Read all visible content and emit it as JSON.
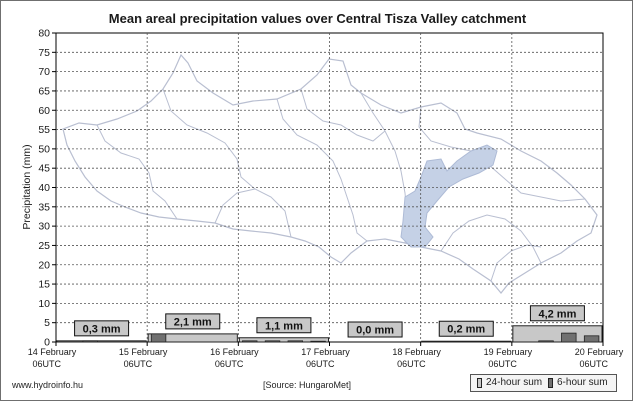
{
  "title": "Mean areal precipitation values over Central Tisza Valley catchment",
  "footer": {
    "website": "www.hydroinfo.hu",
    "source": "[Source: HungaroMet]"
  },
  "legend": {
    "items": [
      {
        "label": "24-hour sum",
        "color": "#c8c8c8"
      },
      {
        "label": "6-hour sum",
        "color": "#707070"
      }
    ]
  },
  "colors": {
    "daily_bar": "#c8c8c8",
    "six_hour_bar": "#707070",
    "label_box": "#c8c8c8",
    "map_outline": "#b9bfd1",
    "lake": "#c5d1e6"
  },
  "chart_data": {
    "type": "bar",
    "title": "Mean areal precipitation values over Central Tisza Valley catchment",
    "ylabel": "Precipitation (mm)",
    "ylim": [
      0,
      80
    ],
    "yticks": [
      0,
      5,
      10,
      15,
      20,
      25,
      30,
      35,
      40,
      45,
      50,
      55,
      60,
      65,
      70,
      75,
      80
    ],
    "grid": true,
    "legend_position": "bottom-right",
    "x_ticks": [
      {
        "line1": "14 February",
        "line2": "06UTC"
      },
      {
        "line1": "15 February",
        "line2": "06UTC"
      },
      {
        "line1": "16 February",
        "line2": "06UTC"
      },
      {
        "line1": "17 February",
        "line2": "06UTC"
      },
      {
        "line1": "18 February",
        "line2": "06UTC"
      },
      {
        "line1": "19 February",
        "line2": "06UTC"
      },
      {
        "line1": "20 February",
        "line2": "06UTC"
      }
    ],
    "daily_series": {
      "name": "24-hour sum",
      "values": [
        0.3,
        2.1,
        1.1,
        0.0,
        0.2,
        4.2
      ],
      "labels": [
        "0,3 mm",
        "2,1 mm",
        "1,1 mm",
        "0,0 mm",
        "0,2 mm",
        "4,2 mm"
      ]
    },
    "six_hour_series": {
      "name": "6-hour sum",
      "values": [
        0.0,
        0.3,
        0.0,
        0.0,
        2.1,
        0.0,
        0.0,
        0.0,
        0.3,
        0.3,
        0.3,
        0.2,
        0.0,
        0.0,
        0.0,
        0.0,
        0.0,
        0.1,
        0.1,
        0.0,
        0.0,
        0.3,
        2.3,
        1.6
      ]
    }
  }
}
